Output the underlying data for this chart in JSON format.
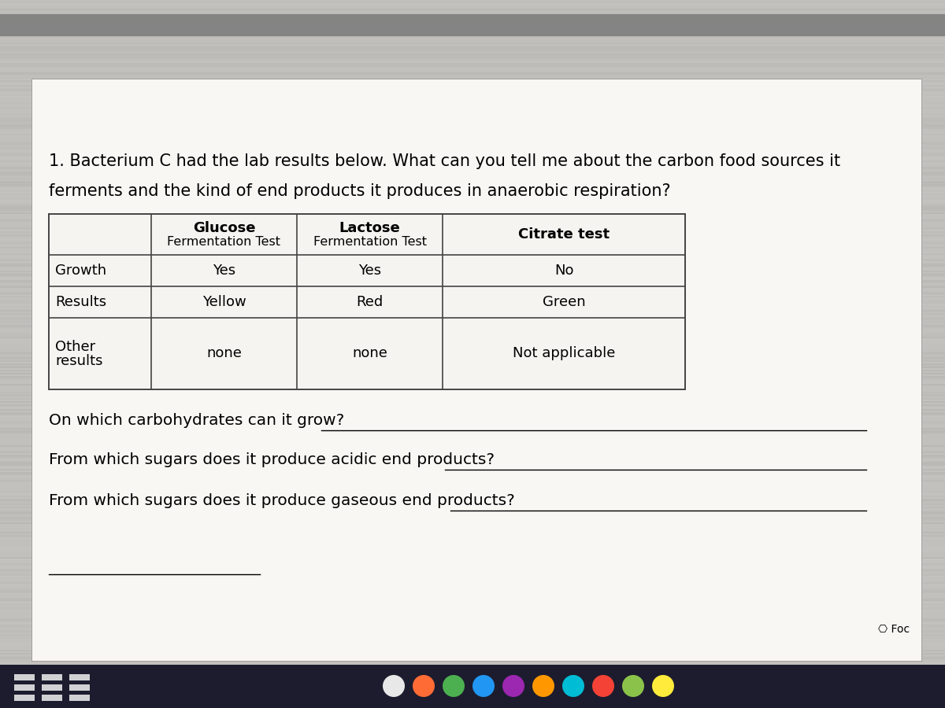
{
  "title_line1": "1. Bacterium C had the lab results below. What can you tell me about the carbon food sources it",
  "title_line2": "ferments and the kind of end products it produces in anaerobic respiration?",
  "col_headers": [
    [
      "Glucose",
      "Fermentation Test"
    ],
    [
      "Lactose",
      "Fermentation Test"
    ],
    [
      "Citrate test",
      ""
    ]
  ],
  "row_labels": [
    "Growth",
    "Results",
    "Other",
    "results"
  ],
  "table_data": [
    [
      "Yes",
      "Yes",
      "No"
    ],
    [
      "Yellow",
      "Red",
      "Green"
    ],
    [
      "none",
      "none",
      "Not applicable"
    ]
  ],
  "questions": [
    "On which carbohydrates can it grow?",
    "From which sugars does it produce acidic end products?",
    "From which sugars does it produce gaseous end products?"
  ],
  "footer_text": "⌘ Foc",
  "bg_color_top": "#b8b8b0",
  "bg_color_main": "#c0bfb8",
  "paper_color": "#f5f4f0",
  "table_bg": "#f5f4f0",
  "table_border": "#444444",
  "title_fontsize": 15,
  "question_fontsize": 14.5,
  "table_header_fontsize": 13,
  "table_data_fontsize": 13,
  "taskbar_color": "#1a1a2e",
  "gray_bar_color": "#909090"
}
